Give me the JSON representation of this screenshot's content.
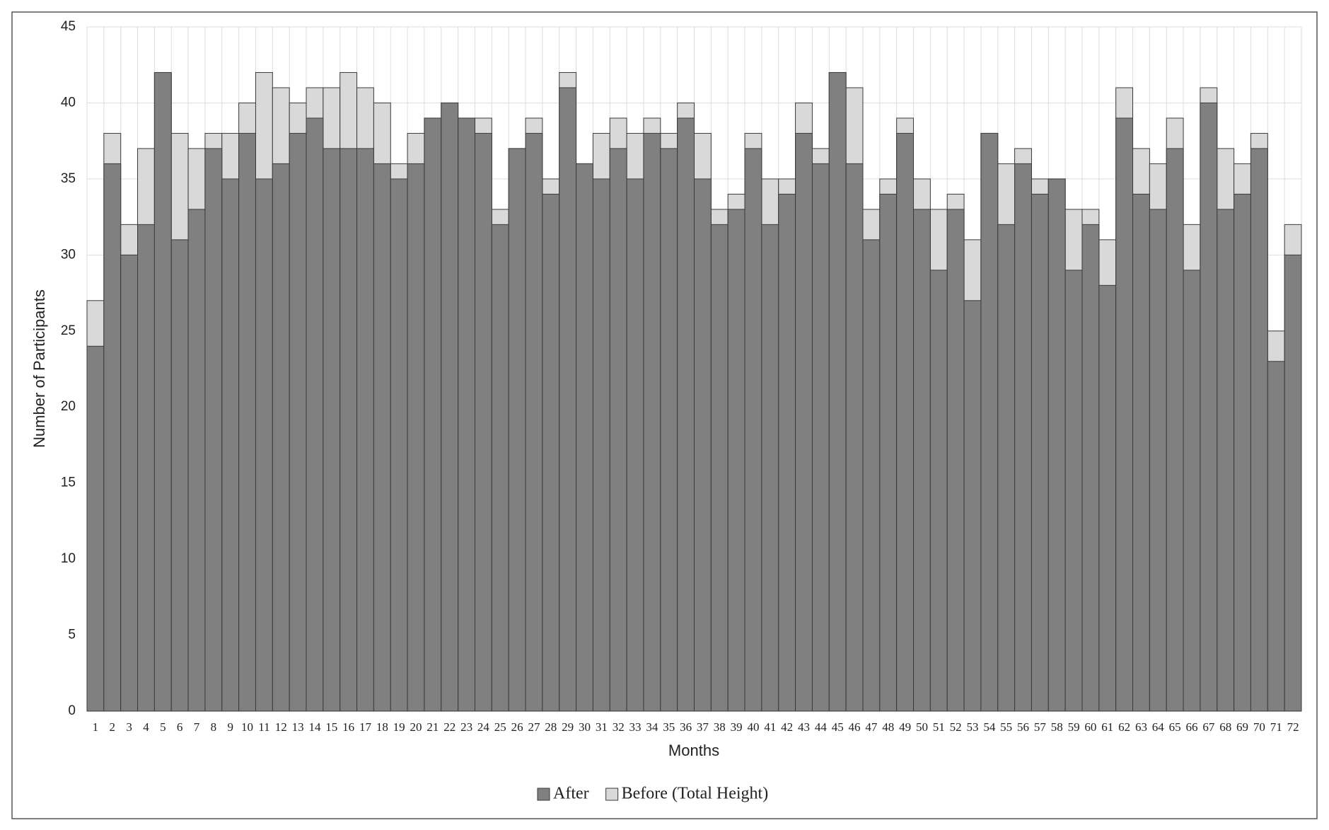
{
  "chart_data": {
    "type": "bar",
    "x_label": "Months",
    "y_label": "Number of Participants",
    "categories": [
      "1",
      "2",
      "3",
      "4",
      "5",
      "6",
      "7",
      "8",
      "9",
      "10",
      "11",
      "12",
      "13",
      "14",
      "15",
      "16",
      "17",
      "18",
      "19",
      "20",
      "21",
      "22",
      "23",
      "24",
      "25",
      "26",
      "27",
      "28",
      "29",
      "30",
      "31",
      "32",
      "33",
      "34",
      "35",
      "36",
      "37",
      "38",
      "39",
      "40",
      "41",
      "42",
      "43",
      "44",
      "45",
      "46",
      "47",
      "48",
      "49",
      "50",
      "51",
      "52",
      "53",
      "54",
      "55",
      "56",
      "57",
      "58",
      "59",
      "60",
      "61",
      "62",
      "63",
      "64",
      "65",
      "66",
      "67",
      "68",
      "69",
      "70",
      "71",
      "72"
    ],
    "series": [
      {
        "name": "After",
        "color": "#808080",
        "values": [
          24,
          36,
          30,
          32,
          42,
          31,
          33,
          37,
          35,
          38,
          35,
          36,
          38,
          39,
          37,
          37,
          37,
          36,
          35,
          36,
          39,
          40,
          39,
          38,
          32,
          37,
          38,
          34,
          41,
          36,
          35,
          37,
          35,
          38,
          37,
          39,
          35,
          32,
          33,
          37,
          32,
          34,
          38,
          36,
          42,
          36,
          31,
          34,
          38,
          33,
          29,
          33,
          27,
          38,
          32,
          36,
          34,
          35,
          29,
          32,
          28,
          39,
          34,
          33,
          37,
          29,
          40,
          33,
          34,
          37,
          23,
          30
        ]
      },
      {
        "name": "Before (Total Height)",
        "color": "#d9d9d9",
        "values": [
          27,
          38,
          32,
          37,
          42,
          38,
          37,
          38,
          38,
          40,
          42,
          41,
          40,
          41,
          41,
          42,
          41,
          40,
          36,
          38,
          39,
          40,
          39,
          39,
          33,
          37,
          39,
          35,
          42,
          36,
          38,
          39,
          38,
          39,
          38,
          40,
          38,
          33,
          34,
          38,
          35,
          35,
          40,
          37,
          42,
          41,
          33,
          35,
          39,
          35,
          33,
          34,
          31,
          38,
          36,
          37,
          35,
          35,
          33,
          33,
          31,
          41,
          37,
          36,
          39,
          32,
          41,
          37,
          36,
          38,
          25,
          32
        ]
      }
    ],
    "ylim": [
      0,
      45
    ],
    "yticks": [
      0,
      5,
      10,
      15,
      20,
      25,
      30,
      35,
      40,
      45
    ],
    "grid": true,
    "legend": "bottom"
  }
}
